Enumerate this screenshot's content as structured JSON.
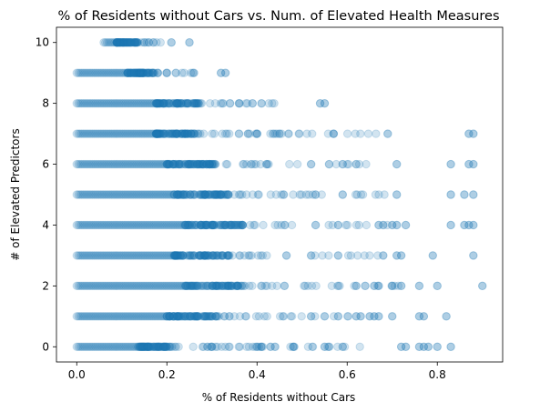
{
  "chart_data": {
    "type": "scatter",
    "title": "% of Residents without Cars vs. Num. of Elevated Health Measures",
    "xlabel": "% of Residents without Cars",
    "ylabel": "# of Elevated Predictors",
    "xlim": [
      -0.045,
      0.945
    ],
    "ylim": [
      -0.5,
      10.5
    ],
    "x_ticks": [
      0.0,
      0.2,
      0.4,
      0.6,
      0.8
    ],
    "x_tick_labels": [
      "0.0",
      "0.2",
      "0.4",
      "0.6",
      "0.8"
    ],
    "y_ticks": [
      0,
      2,
      4,
      6,
      8,
      10
    ],
    "y_tick_labels": [
      "0",
      "2",
      "4",
      "6",
      "8",
      "10"
    ],
    "grid": false,
    "legend": "none",
    "marker_color": "#1f77b4",
    "marker_alpha": 0.2,
    "point_summary_by_level": [
      {
        "y": 0,
        "x_min": 0.0,
        "dense_to": 0.17,
        "x_max": 0.83,
        "outliers": [
          0.29,
          0.3,
          0.4,
          0.41,
          0.43,
          0.44,
          0.48,
          0.55,
          0.56,
          0.59,
          0.72,
          0.73,
          0.76,
          0.77,
          0.78,
          0.8,
          0.83
        ]
      },
      {
        "y": 1,
        "x_min": 0.0,
        "dense_to": 0.25,
        "x_max": 0.82,
        "outliers": [
          0.52,
          0.55,
          0.58,
          0.62,
          0.63,
          0.65,
          0.66,
          0.67,
          0.7,
          0.76,
          0.77,
          0.82
        ]
      },
      {
        "y": 2,
        "x_min": 0.0,
        "dense_to": 0.3,
        "x_max": 0.9,
        "outliers": [
          0.62,
          0.64,
          0.66,
          0.67,
          0.7,
          0.72,
          0.76,
          0.8,
          0.9
        ]
      },
      {
        "y": 3,
        "x_min": 0.0,
        "dense_to": 0.27,
        "x_max": 0.88,
        "outliers": [
          0.52,
          0.58,
          0.68,
          0.71,
          0.72,
          0.79,
          0.88
        ]
      },
      {
        "y": 4,
        "x_min": 0.0,
        "dense_to": 0.3,
        "x_max": 0.88,
        "outliers": [
          0.53,
          0.58,
          0.67,
          0.68,
          0.7,
          0.71,
          0.73,
          0.83,
          0.86,
          0.87,
          0.88
        ]
      },
      {
        "y": 5,
        "x_min": 0.0,
        "dense_to": 0.27,
        "x_max": 0.88,
        "outliers": [
          0.53,
          0.59,
          0.71,
          0.83,
          0.86,
          0.88
        ]
      },
      {
        "y": 6,
        "x_min": 0.0,
        "dense_to": 0.25,
        "x_max": 0.88,
        "outliers": [
          0.52,
          0.56,
          0.59,
          0.62,
          0.71,
          0.83,
          0.87,
          0.88
        ]
      },
      {
        "y": 7,
        "x_min": 0.0,
        "dense_to": 0.22,
        "x_max": 0.88,
        "outliers": [
          0.36,
          0.38,
          0.4,
          0.45,
          0.47,
          0.57,
          0.69,
          0.87,
          0.88
        ]
      },
      {
        "y": 8,
        "x_min": 0.0,
        "dense_to": 0.22,
        "x_max": 0.55,
        "outliers": [
          0.34,
          0.36,
          0.39,
          0.41,
          0.54,
          0.55
        ]
      },
      {
        "y": 9,
        "x_min": 0.0,
        "dense_to": 0.14,
        "x_max": 0.33,
        "outliers": [
          0.18,
          0.2,
          0.22,
          0.26,
          0.32,
          0.33
        ]
      },
      {
        "y": 10,
        "x_min": 0.06,
        "dense_to": 0.11,
        "x_max": 0.25,
        "outliers": [
          0.15,
          0.16,
          0.17,
          0.21,
          0.25
        ]
      }
    ]
  }
}
